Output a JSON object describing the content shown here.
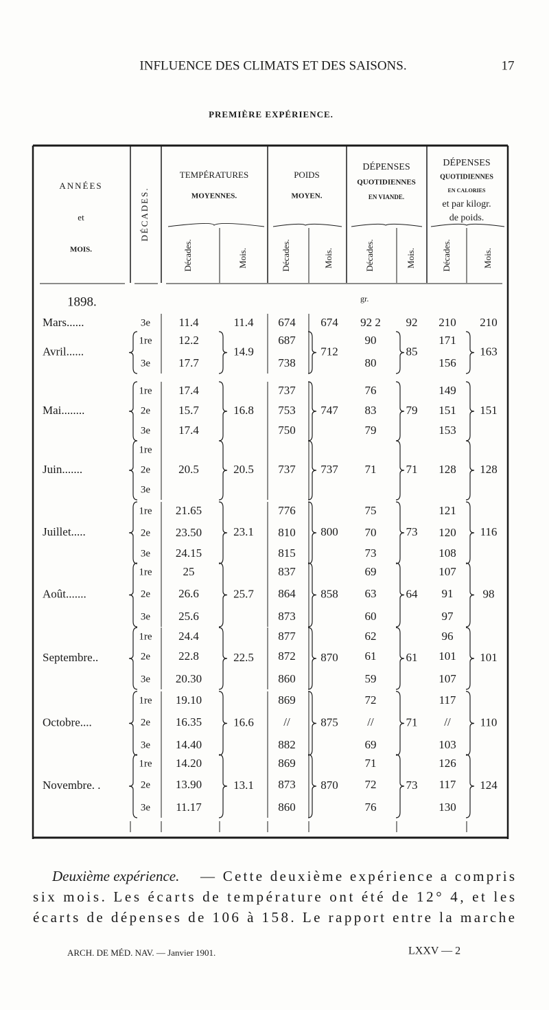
{
  "header": {
    "running_title": "INFLUENCE DES CLIMATS ET DES SAISONS.",
    "page_number": "17"
  },
  "table_title": "PREMIÈRE EXPÉRIENCE.",
  "table": {
    "headers": {
      "month": [
        "ANNÉES",
        "et",
        "MOIS."
      ],
      "decades": "DÉCADES.",
      "temperature": [
        "TEMPÉRATURES",
        "MOYENNES."
      ],
      "weight": [
        "POIDS",
        "MOYEN."
      ],
      "meat": [
        "DÉPENSES",
        "QUOTIDIENNES",
        "EN VIANDE."
      ],
      "calories": [
        "DÉPENSES",
        "QUOTIDIENNES",
        "EN CALORIES",
        "et par kilogr.",
        "de poids."
      ],
      "sub_decades": "Décades.",
      "sub_month": "Mois."
    },
    "year": "1898.",
    "unit": "gr.",
    "rows": [
      {
        "month": "Mars......",
        "decades": [
          "3e"
        ],
        "temperature": [
          "11.4"
        ],
        "temperature_month": "11.4",
        "weight": [
          "674"
        ],
        "weight_month": "674",
        "meat": [
          "92 2"
        ],
        "meat_month": "92",
        "calories": [
          "210"
        ],
        "calories_month": "210"
      },
      {
        "month": "Avril......",
        "decades": [
          "1re",
          "3e"
        ],
        "temperature": [
          "12.2",
          "17.7"
        ],
        "temperature_month": "14.9",
        "weight": [
          "687",
          "738"
        ],
        "weight_month": "712",
        "meat": [
          "90",
          "80"
        ],
        "meat_month": "85",
        "calories": [
          "171",
          "156"
        ],
        "calories_month": "163"
      },
      {
        "month": "Mai........",
        "decades": [
          "1re",
          "2e",
          "3e"
        ],
        "temperature": [
          "17.4",
          "15.7",
          "17.4"
        ],
        "temperature_month": "16.8",
        "weight": [
          "737",
          "753",
          "750"
        ],
        "weight_month": "747",
        "meat": [
          "76",
          "83",
          "79"
        ],
        "meat_month": "79",
        "calories": [
          "149",
          "151",
          "153"
        ],
        "calories_month": "151"
      },
      {
        "month": "Juin.......",
        "decades": [
          "1re",
          "2e",
          "3e"
        ],
        "temperature": [
          "20.5"
        ],
        "temperature_month": "20.5",
        "weight": [
          "737"
        ],
        "weight_month": "737",
        "meat": [
          "71"
        ],
        "meat_month": "71",
        "calories": [
          "128"
        ],
        "calories_month": "128"
      },
      {
        "month": "Juillet.....",
        "decades": [
          "1re",
          "2e",
          "3e"
        ],
        "temperature": [
          "21.65",
          "23.50",
          "24.15"
        ],
        "temperature_month": "23.1",
        "weight": [
          "776",
          "810",
          "815"
        ],
        "weight_month": "800",
        "meat": [
          "75",
          "70",
          "73"
        ],
        "meat_month": "73",
        "calories": [
          "121",
          "120",
          "108"
        ],
        "calories_month": "116"
      },
      {
        "month": "Août.......",
        "decades": [
          "1re",
          "2e",
          "3e"
        ],
        "temperature": [
          "25",
          "26.6",
          "25.6"
        ],
        "temperature_month": "25.7",
        "weight": [
          "837",
          "864",
          "873"
        ],
        "weight_month": "858",
        "meat": [
          "69",
          "63",
          "60"
        ],
        "meat_month": "64",
        "calories": [
          "107",
          "91",
          "97"
        ],
        "calories_month": "98"
      },
      {
        "month": "Septembre..",
        "decades": [
          "1re",
          "2e",
          "3e"
        ],
        "temperature": [
          "24.4",
          "22.8",
          "20.30"
        ],
        "temperature_month": "22.5",
        "weight": [
          "877",
          "872",
          "860"
        ],
        "weight_month": "870",
        "meat": [
          "62",
          "61",
          "59"
        ],
        "meat_month": "61",
        "calories": [
          "96",
          "101",
          "107"
        ],
        "calories_month": "101"
      },
      {
        "month": "Octobre....",
        "decades": [
          "1re",
          "2e",
          "3e"
        ],
        "temperature": [
          "19.10",
          "16.35",
          "14.40"
        ],
        "temperature_month": "16.6",
        "weight": [
          "869",
          "//",
          "882"
        ],
        "weight_month": "875",
        "meat": [
          "72",
          "//",
          "69"
        ],
        "meat_month": "71",
        "calories": [
          "117",
          "//",
          "103"
        ],
        "calories_month": "110"
      },
      {
        "month": "Novembre. .",
        "decades": [
          "1re",
          "2e",
          "3e"
        ],
        "temperature": [
          "14.20",
          "13.90",
          "11.17"
        ],
        "temperature_month": "13.1",
        "weight": [
          "869",
          "873",
          "860"
        ],
        "weight_month": "870",
        "meat": [
          "71",
          "72",
          "76"
        ],
        "meat_month": "73",
        "calories": [
          "126",
          "117",
          "130"
        ],
        "calories_month": "124"
      }
    ]
  },
  "paragraph": {
    "lead": "Deuxième expérience.",
    "lines": [
      "— Cette deuxième expérience a compris",
      "six mois. Les écarts de température ont été de 12° 4, et les",
      "écarts de dépenses de 106 à 158. Le rapport entre la marche"
    ]
  },
  "footer": {
    "journal": "ARCH. DE MÉD. NAV. — Janvier 1901.",
    "signature": "LXXV — 2"
  }
}
